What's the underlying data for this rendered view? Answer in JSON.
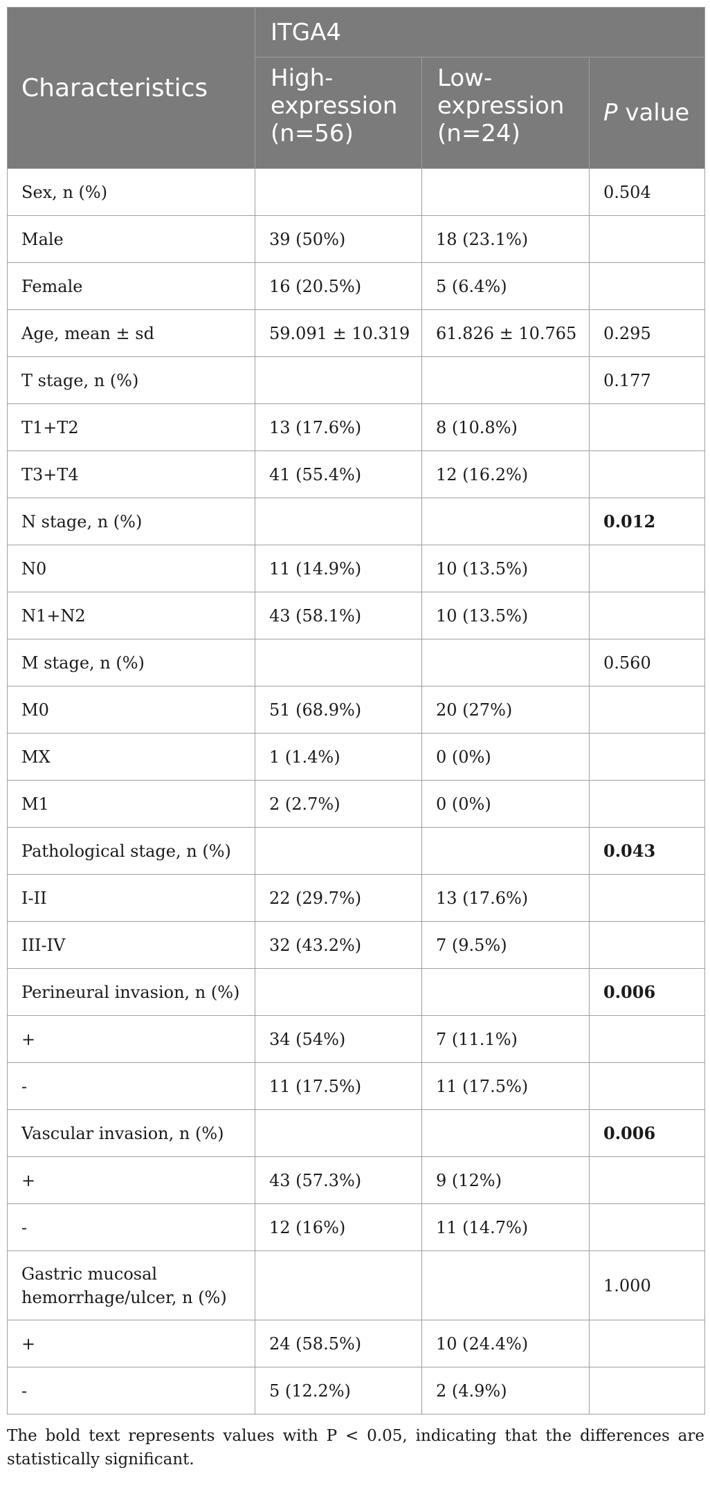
{
  "header": {
    "characteristics": "Characteristics",
    "group": "ITGA4",
    "high": "High-expression (n=56)",
    "low": "Low-expression (n=24)",
    "p_italic": "P",
    "p_rest": " value"
  },
  "rows": [
    {
      "c": "Sex, n (%)",
      "h": "",
      "l": "",
      "p": "0.504",
      "bold": false
    },
    {
      "c": "Male",
      "h": "39 (50%)",
      "l": "18 (23.1%)",
      "p": "",
      "bold": false
    },
    {
      "c": "Female",
      "h": "16 (20.5%)",
      "l": "5 (6.4%)",
      "p": "",
      "bold": false
    },
    {
      "c": "Age, mean ± sd",
      "h": "59.091 ± 10.319",
      "l": "61.826 ± 10.765",
      "p": "0.295",
      "bold": false
    },
    {
      "c": "T stage, n (%)",
      "h": "",
      "l": "",
      "p": "0.177",
      "bold": false
    },
    {
      "c": "T1+T2",
      "h": "13 (17.6%)",
      "l": "8 (10.8%)",
      "p": "",
      "bold": false
    },
    {
      "c": "T3+T4",
      "h": "41 (55.4%)",
      "l": "12 (16.2%)",
      "p": "",
      "bold": false
    },
    {
      "c": "N stage, n (%)",
      "h": "",
      "l": "",
      "p": "0.012",
      "bold": true
    },
    {
      "c": "N0",
      "h": "11 (14.9%)",
      "l": "10 (13.5%)",
      "p": "",
      "bold": false
    },
    {
      "c": "N1+N2",
      "h": "43 (58.1%)",
      "l": "10 (13.5%)",
      "p": "",
      "bold": false
    },
    {
      "c": "M stage, n (%)",
      "h": "",
      "l": "",
      "p": "0.560",
      "bold": false
    },
    {
      "c": "M0",
      "h": "51 (68.9%)",
      "l": "20 (27%)",
      "p": "",
      "bold": false
    },
    {
      "c": "MX",
      "h": "1 (1.4%)",
      "l": "0 (0%)",
      "p": "",
      "bold": false
    },
    {
      "c": "M1",
      "h": "2 (2.7%)",
      "l": "0 (0%)",
      "p": "",
      "bold": false
    },
    {
      "c": "Pathological stage, n (%)",
      "h": "",
      "l": "",
      "p": "0.043",
      "bold": true
    },
    {
      "c": "I-II",
      "h": "22 (29.7%)",
      "l": "13 (17.6%)",
      "p": "",
      "bold": false
    },
    {
      "c": "III-IV",
      "h": "32 (43.2%)",
      "l": "7 (9.5%)",
      "p": "",
      "bold": false
    },
    {
      "c": "Perineural invasion, n (%)",
      "h": "",
      "l": "",
      "p": "0.006",
      "bold": true
    },
    {
      "c": "+",
      "h": "34 (54%)",
      "l": "7 (11.1%)",
      "p": "",
      "bold": false
    },
    {
      "c": "-",
      "h": "11 (17.5%)",
      "l": "11 (17.5%)",
      "p": "",
      "bold": false
    },
    {
      "c": "Vascular invasion, n (%)",
      "h": "",
      "l": "",
      "p": "0.006",
      "bold": true
    },
    {
      "c": "+",
      "h": "43 (57.3%)",
      "l": "9 (12%)",
      "p": "",
      "bold": false
    },
    {
      "c": "-",
      "h": "12 (16%)",
      "l": "11 (14.7%)",
      "p": "",
      "bold": false
    },
    {
      "c": "Gastric mucosal hemorrhage/ulcer, n (%)",
      "h": "",
      "l": "",
      "p": "1.000",
      "bold": false,
      "tall": true
    },
    {
      "c": "+",
      "h": "24 (58.5%)",
      "l": "10 (24.4%)",
      "p": "",
      "bold": false
    },
    {
      "c": "-",
      "h": "5 (12.2%)",
      "l": "2 (4.9%)",
      "p": "",
      "bold": false
    }
  ],
  "footnote": "The bold text represents values with P < 0.05, indicating that the differences are statistically significant."
}
